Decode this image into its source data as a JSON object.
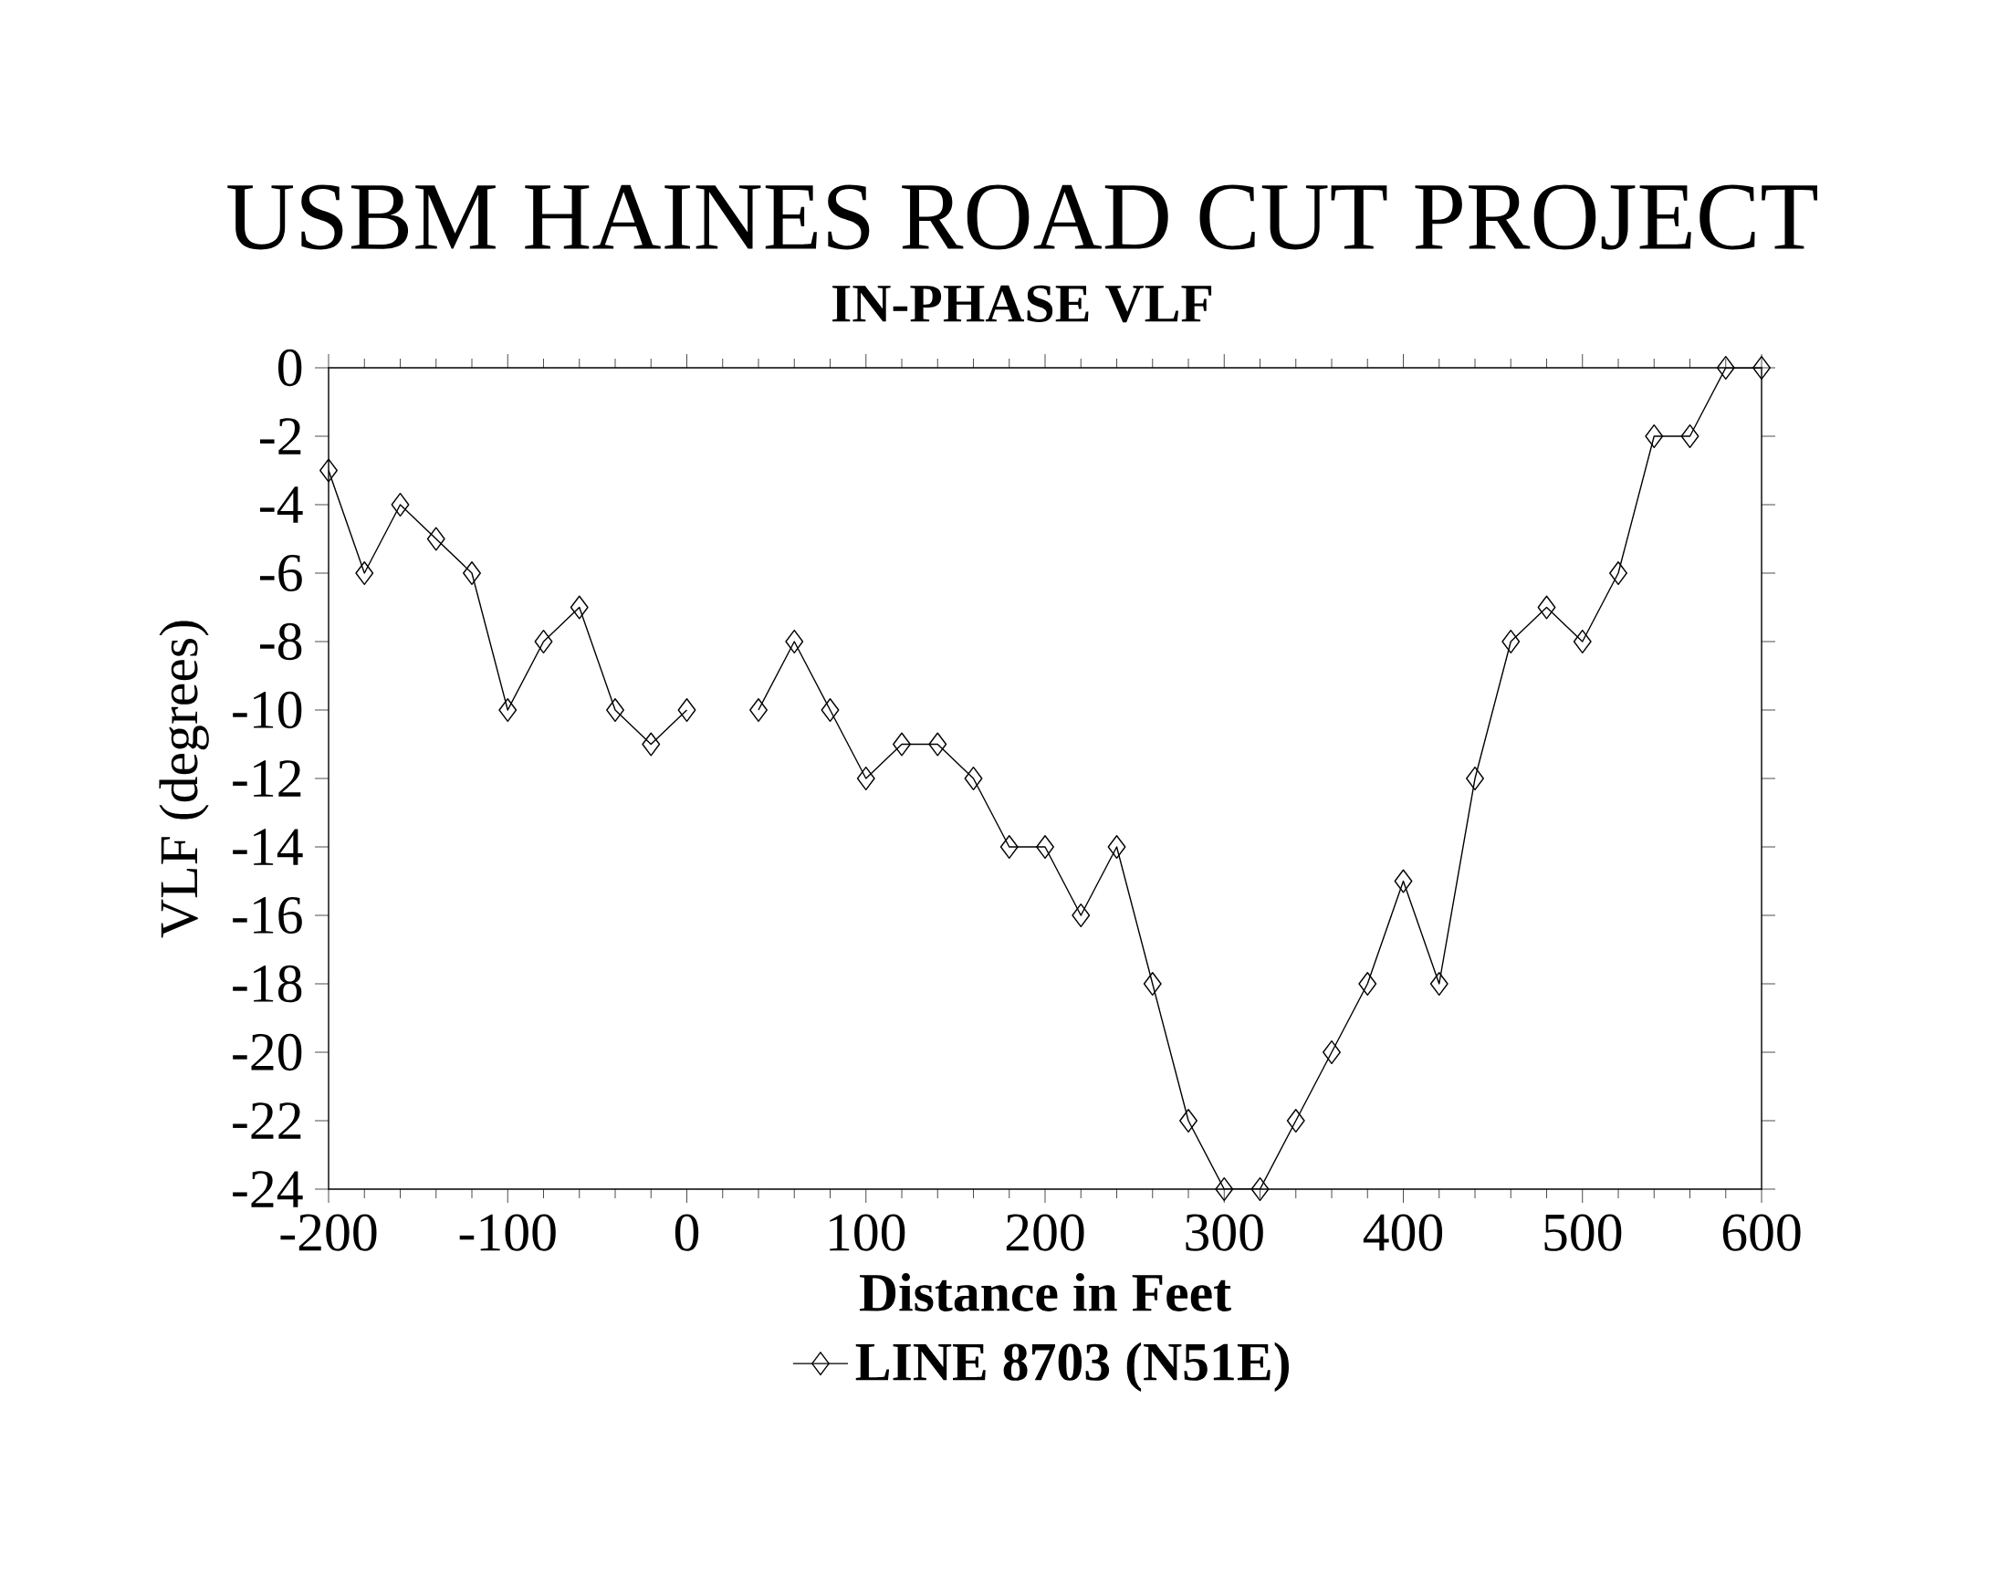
{
  "chart_data": {
    "type": "line",
    "title": "USBM HAINES ROAD CUT PROJECT",
    "subtitle": "IN-PHASE VLF",
    "xlabel": "Distance in Feet",
    "ylabel": "VLF (degrees)",
    "x": [
      -200,
      -180,
      -160,
      -140,
      -120,
      -100,
      -80,
      -60,
      -40,
      -20,
      0,
      20,
      40,
      60,
      80,
      100,
      120,
      140,
      160,
      180,
      200,
      220,
      240,
      260,
      280,
      300,
      320,
      340,
      360,
      380,
      400,
      420,
      440,
      460,
      480,
      500,
      520,
      540,
      560,
      580,
      600
    ],
    "series": [
      {
        "name": "LINE 8703 (N51E)",
        "color": "#000000",
        "values": [
          -3,
          -6,
          -4,
          -5,
          -6,
          -10,
          -8,
          -7,
          -10,
          -11,
          -10,
          null,
          -10,
          -8,
          -10,
          -12,
          -11,
          -11,
          -12,
          -14,
          -14,
          -16,
          -14,
          -18,
          -22,
          -24,
          -24,
          -22,
          -20,
          -18,
          -15,
          -18,
          -12,
          -8,
          -7,
          -8,
          -6,
          -2,
          -2,
          0,
          0
        ]
      }
    ],
    "xlim": [
      -200,
      600
    ],
    "xticks": [
      -200,
      -100,
      0,
      100,
      200,
      300,
      400,
      500,
      600
    ],
    "ylim": [
      -24,
      0
    ],
    "yticks": [
      0,
      -2,
      -4,
      -6,
      -8,
      -10,
      -12,
      -14,
      -16,
      -18,
      -20,
      -22,
      -24
    ],
    "marker": "diamond",
    "line_style": "solid",
    "legend": "bottom",
    "grid": false
  }
}
